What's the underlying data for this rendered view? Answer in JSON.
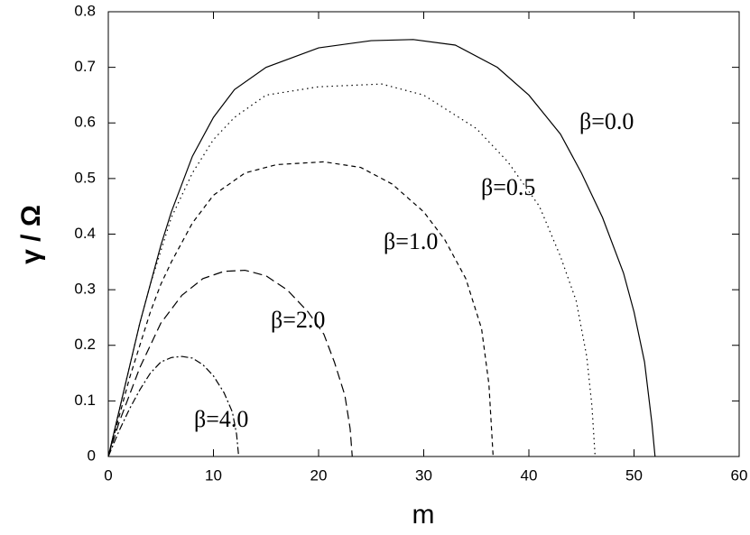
{
  "chart_data": {
    "type": "line",
    "xlabel": "m",
    "ylabel": "γ / Ω",
    "xlim": [
      0,
      60
    ],
    "ylim": [
      0,
      0.8
    ],
    "xticks": [
      0,
      10,
      20,
      30,
      40,
      50,
      60
    ],
    "yticks": [
      0,
      0.1,
      0.2,
      0.3,
      0.4,
      0.5,
      0.6,
      0.7,
      0.8
    ],
    "series": [
      {
        "name": "β=0.0",
        "color": "#000000",
        "dash": "none",
        "x": [
          0,
          1,
          2,
          3,
          4,
          5,
          6,
          8,
          10,
          12,
          15,
          20,
          25,
          29,
          33,
          37,
          40,
          43,
          45,
          47,
          49,
          50,
          51,
          51.7,
          52
        ],
        "values": [
          0,
          0.08,
          0.16,
          0.24,
          0.31,
          0.38,
          0.44,
          0.54,
          0.61,
          0.66,
          0.7,
          0.735,
          0.748,
          0.75,
          0.74,
          0.7,
          0.65,
          0.58,
          0.51,
          0.43,
          0.33,
          0.26,
          0.17,
          0.06,
          0
        ]
      },
      {
        "name": "β=0.5",
        "color": "#000000",
        "dash": "1.5,4",
        "x": [
          0,
          1,
          2,
          3,
          4,
          5,
          6,
          8,
          10,
          12,
          15,
          20,
          26,
          30,
          35,
          38,
          41,
          43,
          44.5,
          45.5,
          46,
          46.3
        ],
        "values": [
          0,
          0.08,
          0.16,
          0.24,
          0.31,
          0.37,
          0.43,
          0.51,
          0.57,
          0.61,
          0.65,
          0.665,
          0.67,
          0.65,
          0.59,
          0.53,
          0.45,
          0.36,
          0.28,
          0.18,
          0.09,
          0
        ]
      },
      {
        "name": "β=1.0",
        "color": "#000000",
        "dash": "5,4",
        "x": [
          0,
          1,
          2,
          3,
          4,
          5,
          6,
          8,
          10,
          13,
          16,
          20.5,
          24,
          27,
          30,
          32,
          34,
          35.5,
          36.2,
          36.6
        ],
        "values": [
          0,
          0.07,
          0.14,
          0.2,
          0.26,
          0.31,
          0.35,
          0.42,
          0.47,
          0.51,
          0.525,
          0.53,
          0.52,
          0.49,
          0.44,
          0.39,
          0.32,
          0.23,
          0.13,
          0
        ]
      },
      {
        "name": "β=2.0",
        "color": "#000000",
        "dash": "10,5",
        "x": [
          0,
          1,
          2,
          3,
          4,
          5,
          7,
          9,
          11,
          13,
          15,
          17,
          19,
          20.5,
          21.5,
          22.5,
          23,
          23.2
        ],
        "values": [
          0,
          0.06,
          0.11,
          0.16,
          0.2,
          0.24,
          0.29,
          0.32,
          0.333,
          0.335,
          0.325,
          0.3,
          0.26,
          0.22,
          0.17,
          0.11,
          0.05,
          0
        ]
      },
      {
        "name": "β=4.0",
        "color": "#000000",
        "dash": "8,3,2,3",
        "x": [
          0,
          1,
          2,
          3,
          4,
          5,
          6,
          7,
          8,
          9,
          10,
          11,
          11.8,
          12.2,
          12.4
        ],
        "values": [
          0,
          0.045,
          0.085,
          0.12,
          0.15,
          0.17,
          0.178,
          0.18,
          0.177,
          0.165,
          0.145,
          0.115,
          0.08,
          0.04,
          0
        ]
      }
    ]
  }
}
